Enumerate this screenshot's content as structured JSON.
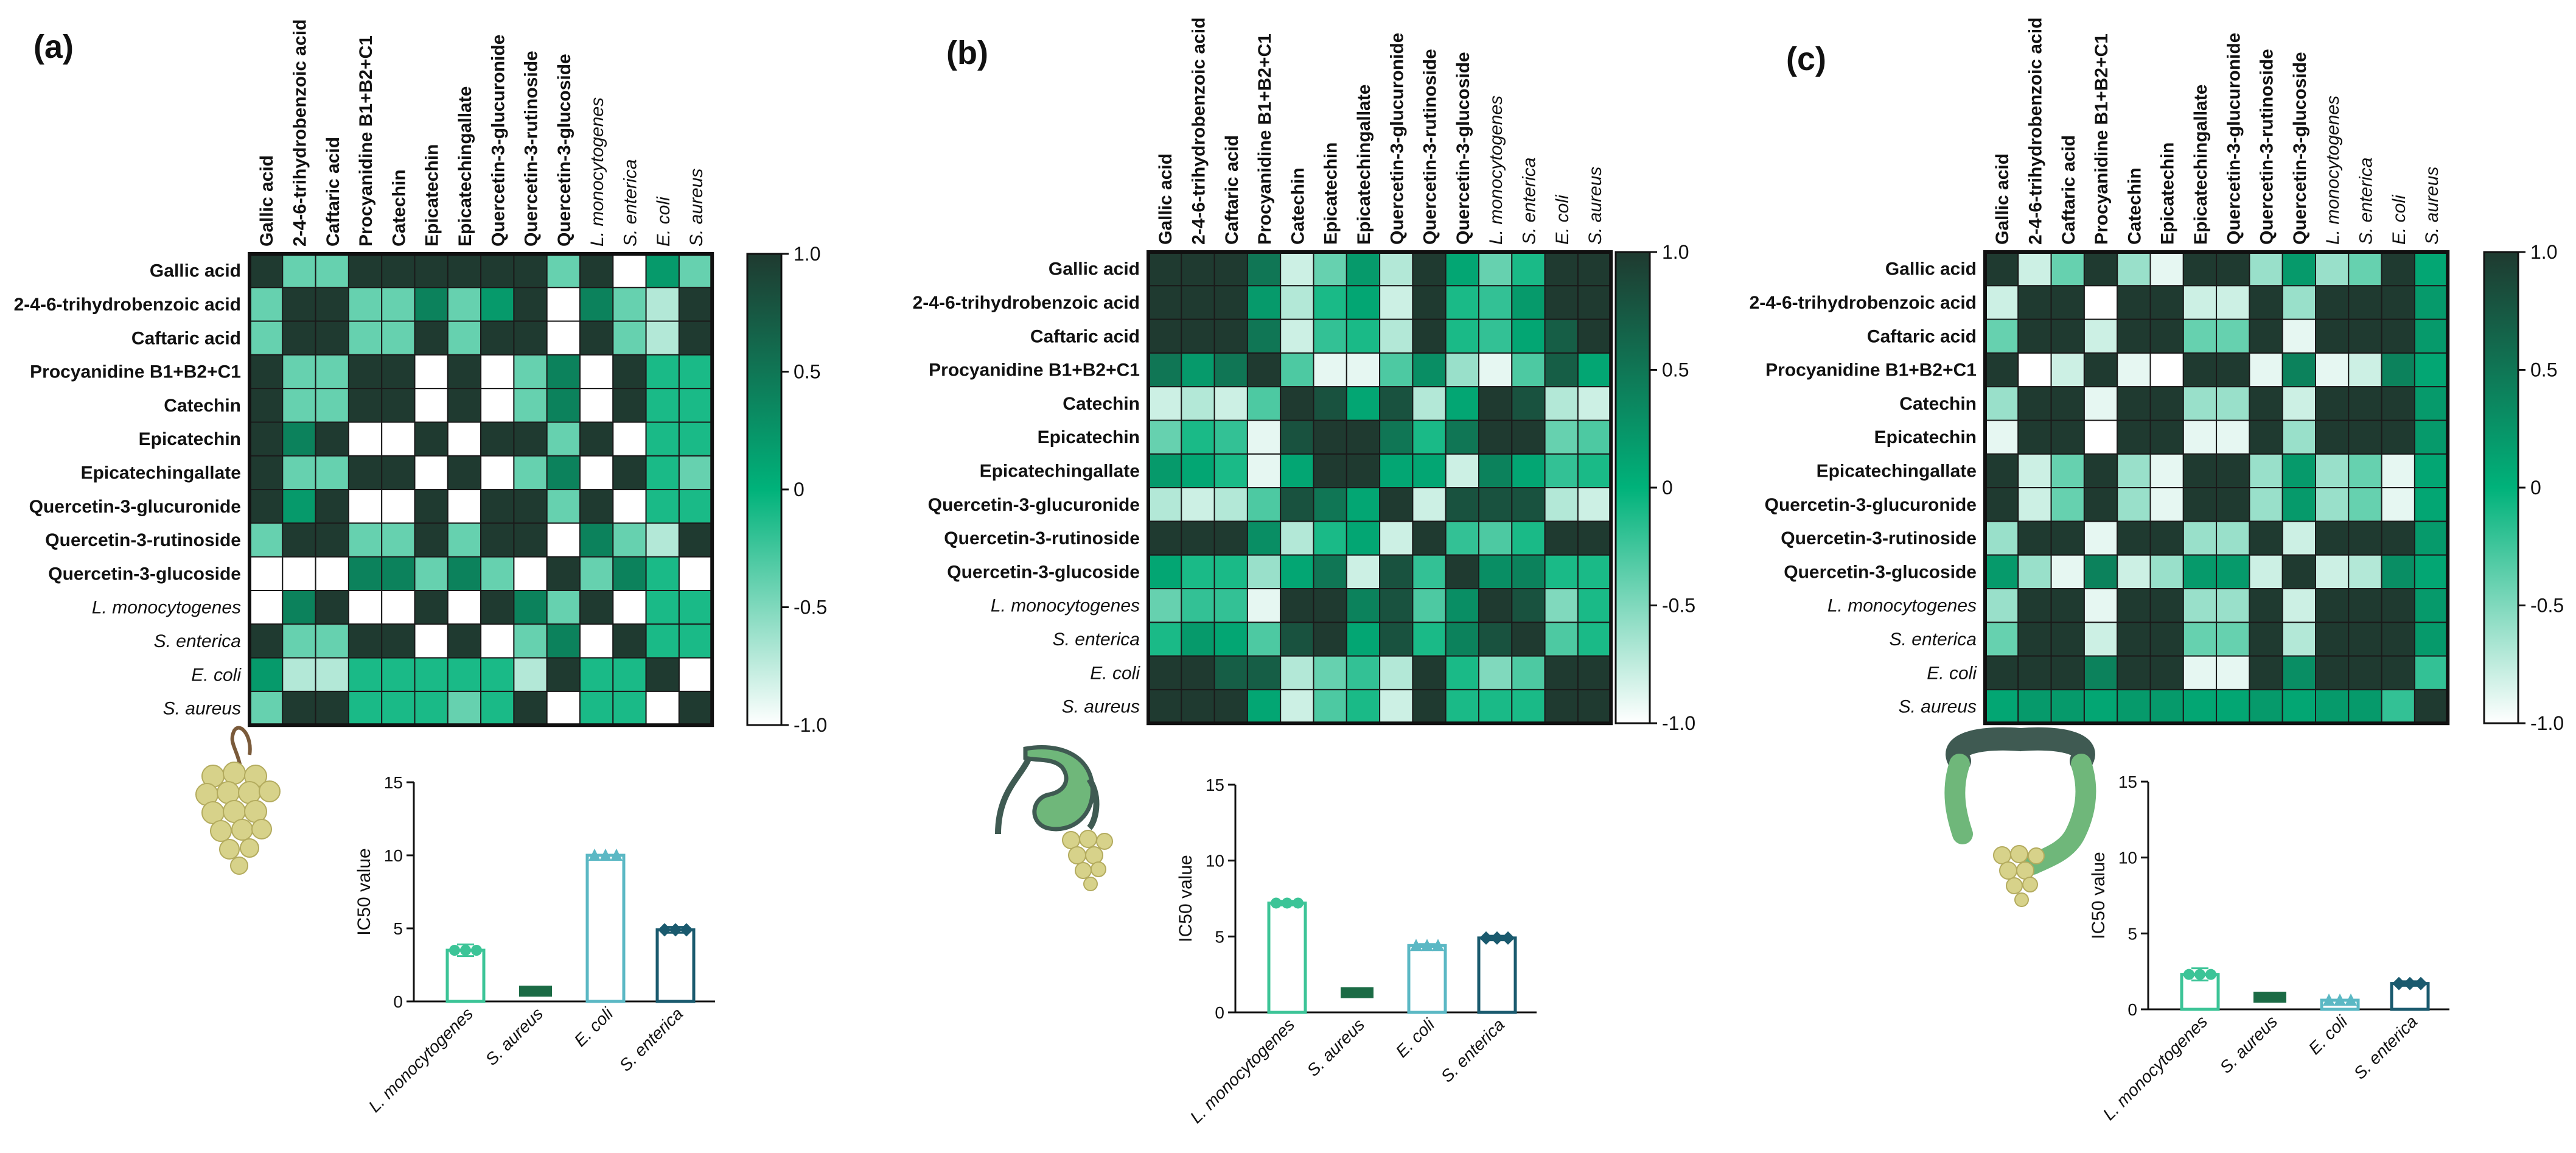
{
  "colors": {
    "max": "#1f3a30",
    "mid": "#00b27a",
    "min": "#ffffff"
  },
  "labels": [
    {
      "text": "Gallic acid",
      "italic": false
    },
    {
      "text": "2-4-6-trihydrobenzoic acid",
      "italic": false
    },
    {
      "text": "Caftaric acid",
      "italic": false
    },
    {
      "text": "Procyanidine B1+B2+C1",
      "italic": false
    },
    {
      "text": "Catechin",
      "italic": false
    },
    {
      "text": "Epicatechin",
      "italic": false
    },
    {
      "text": "Epicatechingallate",
      "italic": false
    },
    {
      "text": "Quercetin-3-glucuronide",
      "italic": false
    },
    {
      "text": "Quercetin-3-rutinoside",
      "italic": false
    },
    {
      "text": "Quercetin-3-glucoside",
      "italic": false
    },
    {
      "text": "L. monocytogenes",
      "italic": true
    },
    {
      "text": "S. enterica",
      "italic": true
    },
    {
      "text": "E. coli",
      "italic": true
    },
    {
      "text": "S. aureus",
      "italic": true
    }
  ],
  "chart_data": [
    {
      "panel": "(a)",
      "type": "heatmap",
      "colorbar": {
        "range": [
          -1.0,
          1.0
        ],
        "ticks": [
          "1.0",
          "0.5",
          "0",
          "-0.5",
          "-1.0"
        ]
      },
      "matrix": [
        [
          1,
          -0.4,
          -0.4,
          1,
          1,
          1,
          1,
          1,
          1,
          -0.4,
          1,
          -1,
          0.2,
          -0.4
        ],
        [
          -0.4,
          1,
          1,
          -0.4,
          -0.4,
          0.4,
          -0.4,
          0.2,
          1,
          -1,
          0.4,
          -0.4,
          -0.7,
          1
        ],
        [
          -0.4,
          1,
          1,
          -0.4,
          -0.4,
          1,
          -0.4,
          1,
          1,
          -1,
          1,
          -0.4,
          -0.7,
          1
        ],
        [
          1,
          -0.4,
          -0.4,
          1,
          1,
          -1,
          1,
          -1,
          -0.4,
          0.4,
          -1,
          1,
          -0.1,
          -0.1
        ],
        [
          1,
          -0.4,
          -0.4,
          1,
          1,
          -1,
          1,
          -1,
          -0.4,
          0.4,
          -1,
          1,
          -0.1,
          -0.1
        ],
        [
          1,
          0.4,
          1,
          -1,
          -1,
          1,
          -1,
          1,
          1,
          -0.4,
          1,
          -1,
          -0.1,
          -0.1
        ],
        [
          1,
          -0.4,
          -0.4,
          1,
          1,
          -1,
          1,
          -1,
          -0.4,
          0.4,
          -1,
          1,
          -0.1,
          -0.4
        ],
        [
          1,
          0.2,
          1,
          -1,
          -1,
          1,
          -1,
          1,
          1,
          -0.4,
          1,
          -1,
          -0.1,
          -0.1
        ],
        [
          -0.4,
          1,
          1,
          -0.4,
          -0.4,
          1,
          -0.4,
          1,
          1,
          -1,
          0.4,
          -0.4,
          -0.7,
          1
        ],
        [
          -1,
          -1,
          -1,
          0.4,
          0.4,
          -0.4,
          0.4,
          -0.4,
          -1,
          1,
          -0.4,
          0.4,
          -0.1,
          -1
        ],
        [
          -1,
          0.4,
          1,
          -1,
          -1,
          1,
          -1,
          1,
          0.4,
          -0.4,
          1,
          -1,
          -0.1,
          -0.1
        ],
        [
          1,
          -0.4,
          -0.4,
          1,
          1,
          -1,
          1,
          -1,
          -0.4,
          0.4,
          -1,
          1,
          -0.1,
          -0.1
        ],
        [
          0.2,
          -0.7,
          -0.7,
          -0.1,
          -0.1,
          -0.1,
          -0.1,
          -0.1,
          -0.7,
          1,
          -0.1,
          -0.1,
          1,
          -1
        ],
        [
          -0.4,
          1,
          1,
          -0.1,
          -0.1,
          -0.1,
          -0.4,
          -0.1,
          1,
          -1,
          -0.1,
          -0.1,
          -1,
          1
        ]
      ]
    },
    {
      "panel": "(b)",
      "type": "heatmap",
      "colorbar": {
        "range": [
          -1.0,
          1.0
        ],
        "ticks": [
          "1.0",
          "0.5",
          "0",
          "-0.5",
          "-1.0"
        ]
      },
      "matrix": [
        [
          1,
          1,
          1,
          0.5,
          -0.8,
          -0.4,
          0.2,
          -0.7,
          1,
          0.1,
          -0.4,
          -0.1,
          1,
          1
        ],
        [
          1,
          1,
          1,
          0.2,
          -0.7,
          -0.1,
          0.1,
          -0.8,
          1,
          -0.1,
          -0.2,
          0.2,
          1,
          1
        ],
        [
          1,
          1,
          1,
          0.5,
          -0.8,
          -0.2,
          -0.1,
          -0.7,
          1,
          -0.1,
          -0.2,
          0.1,
          0.7,
          1
        ],
        [
          0.5,
          0.2,
          0.5,
          1,
          -0.3,
          -0.9,
          -0.9,
          -0.3,
          0.3,
          -0.6,
          -0.9,
          -0.3,
          0.7,
          0.1
        ],
        [
          -0.8,
          -0.7,
          -0.8,
          -0.3,
          1,
          0.8,
          0.1,
          0.8,
          -0.7,
          0.1,
          1,
          0.8,
          -0.7,
          -0.8
        ],
        [
          -0.4,
          -0.1,
          -0.2,
          -0.9,
          0.8,
          1,
          1,
          0.5,
          -0.1,
          0.5,
          1,
          1,
          -0.4,
          -0.3
        ],
        [
          0.2,
          0.1,
          -0.1,
          -0.9,
          0.1,
          1,
          1,
          0.1,
          0.1,
          -0.8,
          0.4,
          0.1,
          -0.2,
          -0.1
        ],
        [
          -0.7,
          -0.8,
          -0.7,
          -0.3,
          0.8,
          0.5,
          0.1,
          1,
          -0.8,
          0.8,
          0.8,
          0.8,
          -0.7,
          -0.8
        ],
        [
          1,
          1,
          1,
          0.3,
          -0.7,
          -0.1,
          0.1,
          -0.8,
          1,
          -0.2,
          -0.3,
          -0.1,
          1,
          1
        ],
        [
          0.1,
          -0.1,
          -0.1,
          -0.6,
          0.1,
          0.5,
          -0.8,
          0.8,
          -0.2,
          1,
          0.3,
          0.4,
          -0.1,
          -0.1
        ],
        [
          -0.4,
          -0.2,
          -0.2,
          -0.9,
          1,
          1,
          0.4,
          0.8,
          -0.3,
          0.3,
          1,
          0.8,
          -0.5,
          -0.1
        ],
        [
          -0.1,
          0.2,
          0.1,
          -0.3,
          0.8,
          1,
          0.1,
          0.8,
          -0.1,
          0.4,
          0.8,
          1,
          -0.3,
          -0.1
        ],
        [
          1,
          1,
          0.7,
          0.7,
          -0.7,
          -0.4,
          -0.2,
          -0.7,
          1,
          -0.1,
          -0.5,
          -0.3,
          1,
          1
        ],
        [
          1,
          1,
          1,
          0.1,
          -0.8,
          -0.3,
          -0.1,
          -0.8,
          1,
          -0.1,
          -0.1,
          -0.1,
          1,
          1
        ]
      ]
    },
    {
      "panel": "(c)",
      "type": "heatmap",
      "colorbar": {
        "range": [
          -1.0,
          1.0
        ],
        "ticks": [
          "1.0",
          "0.5",
          "0",
          "-0.5",
          "-1.0"
        ]
      },
      "matrix": [
        [
          1,
          -0.8,
          -0.4,
          1,
          -0.6,
          -0.9,
          1,
          1,
          -0.6,
          0.2,
          -0.6,
          -0.4,
          1,
          0.1
        ],
        [
          -0.8,
          1,
          1,
          -1,
          1,
          1,
          -0.8,
          -0.8,
          1,
          -0.6,
          1,
          1,
          1,
          0.2
        ],
        [
          -0.4,
          1,
          1,
          -0.8,
          1,
          1,
          -0.4,
          -0.4,
          1,
          -0.9,
          1,
          1,
          1,
          0.2
        ],
        [
          1,
          -1,
          -0.8,
          1,
          -0.9,
          -1,
          1,
          1,
          -0.9,
          0.4,
          -0.9,
          -0.8,
          0.4,
          0.1
        ],
        [
          -0.6,
          1,
          1,
          -0.9,
          1,
          1,
          -0.6,
          -0.6,
          1,
          -0.8,
          1,
          1,
          1,
          0.2
        ],
        [
          -0.9,
          1,
          1,
          -1,
          1,
          1,
          -0.9,
          -0.9,
          1,
          -0.6,
          1,
          1,
          1,
          0.2
        ],
        [
          1,
          -0.8,
          -0.4,
          1,
          -0.6,
          -0.9,
          1,
          1,
          -0.6,
          0.2,
          -0.6,
          -0.4,
          -0.9,
          0.1
        ],
        [
          1,
          -0.8,
          -0.4,
          1,
          -0.6,
          -0.9,
          1,
          1,
          -0.6,
          0.2,
          -0.6,
          -0.4,
          -0.9,
          0.1
        ],
        [
          -0.6,
          1,
          1,
          -0.9,
          1,
          1,
          -0.6,
          -0.6,
          1,
          -0.8,
          1,
          1,
          1,
          0.2
        ],
        [
          0.2,
          -0.6,
          -0.9,
          0.4,
          -0.8,
          -0.6,
          0.2,
          0.2,
          -0.8,
          1,
          -0.8,
          -0.7,
          0.3,
          0.1
        ],
        [
          -0.6,
          1,
          1,
          -0.9,
          1,
          1,
          -0.6,
          -0.6,
          1,
          -0.8,
          1,
          1,
          1,
          0.2
        ],
        [
          -0.4,
          1,
          1,
          -0.8,
          1,
          1,
          -0.4,
          -0.4,
          1,
          -0.7,
          1,
          1,
          1,
          0.2
        ],
        [
          1,
          1,
          1,
          0.4,
          1,
          1,
          -0.9,
          -0.9,
          1,
          0.3,
          1,
          1,
          1,
          -0.2
        ],
        [
          0.1,
          0.2,
          0.2,
          0.1,
          0.2,
          0.2,
          0.1,
          0.1,
          0.2,
          0.1,
          0.2,
          0.2,
          -0.2,
          1
        ]
      ]
    },
    {
      "panel": "(a)",
      "type": "bar",
      "ylabel": "IC50 value",
      "ylim": [
        0,
        15
      ],
      "yticks": [
        0,
        5,
        10,
        15
      ],
      "categories": [
        "L. monocytogenes",
        "S. aureus",
        "E. coli",
        "S. enterica"
      ],
      "values": [
        3.5,
        0.7,
        10.0,
        4.9
      ],
      "errors": [
        0.4,
        0,
        0,
        0.2
      ],
      "markers": [
        "circle",
        "square",
        "triangle",
        "diamond"
      ],
      "bar_colors": [
        "#3cc497",
        "#1b6b45",
        "#5bb8c4",
        "#1a5a6e"
      ],
      "filled": [
        false,
        true,
        false,
        false
      ]
    },
    {
      "panel": "(b)",
      "type": "bar",
      "ylabel": "IC50 value",
      "ylim": [
        0,
        15
      ],
      "yticks": [
        0,
        5,
        10,
        15
      ],
      "categories": [
        "L. monocytogenes",
        "S. aureus",
        "E. coli",
        "S. enterica"
      ],
      "values": [
        7.2,
        1.3,
        4.4,
        4.9
      ],
      "errors": [
        0.15,
        0.1,
        0.1,
        0.15
      ],
      "markers": [
        "circle",
        "square",
        "triangle",
        "diamond"
      ],
      "bar_colors": [
        "#3cc497",
        "#1b6b45",
        "#5bb8c4",
        "#1a5a6e"
      ],
      "filled": [
        false,
        true,
        false,
        false
      ]
    },
    {
      "panel": "(c)",
      "type": "bar",
      "ylabel": "IC50 value",
      "ylim": [
        0,
        15
      ],
      "yticks": [
        0,
        5,
        10,
        15
      ],
      "categories": [
        "L. monocytogenes",
        "S. aureus",
        "E. coli",
        "S. enterica"
      ],
      "values": [
        2.3,
        0.8,
        0.6,
        1.7
      ],
      "errors": [
        0.4,
        0.1,
        0,
        0.15
      ],
      "markers": [
        "circle",
        "square",
        "triangle",
        "diamond"
      ],
      "bar_colors": [
        "#3cc497",
        "#1b6b45",
        "#5bb8c4",
        "#1a5a6e"
      ],
      "filled": [
        false,
        true,
        false,
        false
      ]
    }
  ]
}
